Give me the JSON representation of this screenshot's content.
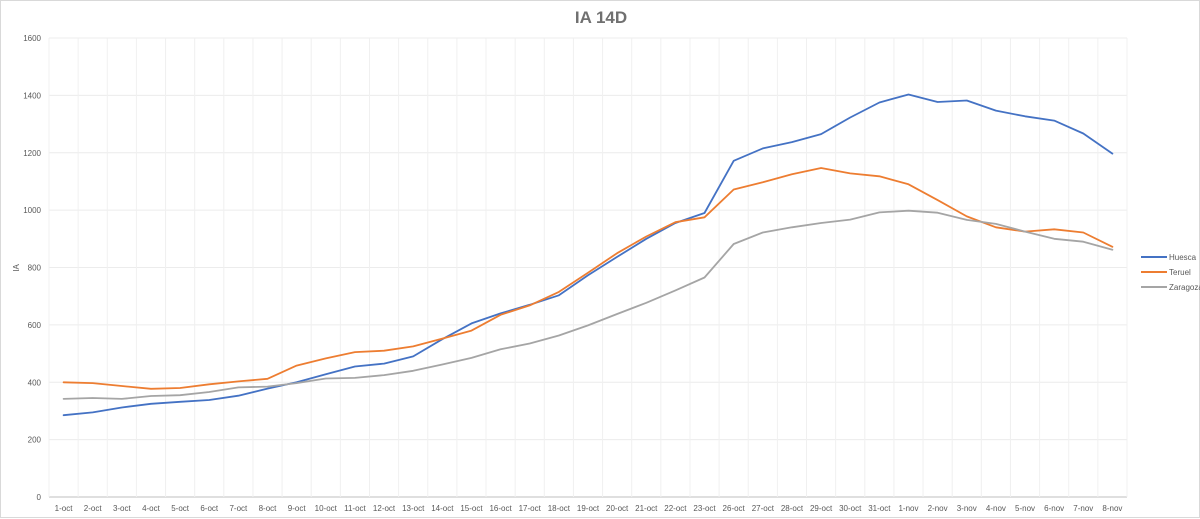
{
  "chart_data": {
    "type": "line",
    "title": "IA 14D",
    "xlabel": "",
    "ylabel": "IA",
    "ylim": [
      0,
      1600
    ],
    "yticks": [
      0,
      200,
      400,
      600,
      800,
      1000,
      1200,
      1400,
      1600
    ],
    "grid": "vertical and horizontal, light",
    "legend": "right",
    "categories": [
      "1-oct",
      "2-oct",
      "3-oct",
      "4-oct",
      "5-oct",
      "6-oct",
      "7-oct",
      "8-oct",
      "9-oct",
      "10-oct",
      "11-oct",
      "12-oct",
      "13-oct",
      "14-oct",
      "15-oct",
      "16-oct",
      "17-oct",
      "18-oct",
      "19-oct",
      "20-oct",
      "21-oct",
      "22-oct",
      "23-oct",
      "26-oct",
      "27-oct",
      "28-oct",
      "29-oct",
      "30-oct",
      "31-oct",
      "1-nov",
      "2-nov",
      "3-nov",
      "4-nov",
      "5-nov",
      "6-nov",
      "7-nov",
      "8-nov"
    ],
    "series": [
      {
        "name": "Huesca",
        "color": "#4472c4",
        "values": [
          285,
          295,
          312,
          325,
          332,
          338,
          353,
          378,
          400,
          428,
          455,
          465,
          490,
          550,
          605,
          640,
          670,
          703,
          773,
          837,
          900,
          955,
          990,
          1172,
          1215,
          1237,
          1265,
          1323,
          1375,
          1403,
          1377,
          1382,
          1347,
          1327,
          1312,
          1267,
          1197
        ]
      },
      {
        "name": "Teruel",
        "color": "#ed7d31",
        "values": [
          400,
          397,
          387,
          377,
          380,
          393,
          403,
          412,
          458,
          483,
          505,
          510,
          525,
          552,
          580,
          635,
          668,
          715,
          782,
          850,
          908,
          958,
          975,
          1072,
          1097,
          1125,
          1147,
          1128,
          1118,
          1090,
          1035,
          978,
          940,
          925,
          933,
          922,
          872
        ]
      },
      {
        "name": "Zaragoza",
        "color": "#a5a5a5",
        "values": [
          342,
          345,
          342,
          352,
          355,
          366,
          382,
          385,
          397,
          413,
          415,
          425,
          440,
          462,
          485,
          515,
          535,
          563,
          598,
          638,
          677,
          720,
          765,
          882,
          922,
          940,
          955,
          967,
          992,
          998,
          991,
          966,
          952,
          925,
          900,
          890,
          862
        ]
      }
    ]
  }
}
